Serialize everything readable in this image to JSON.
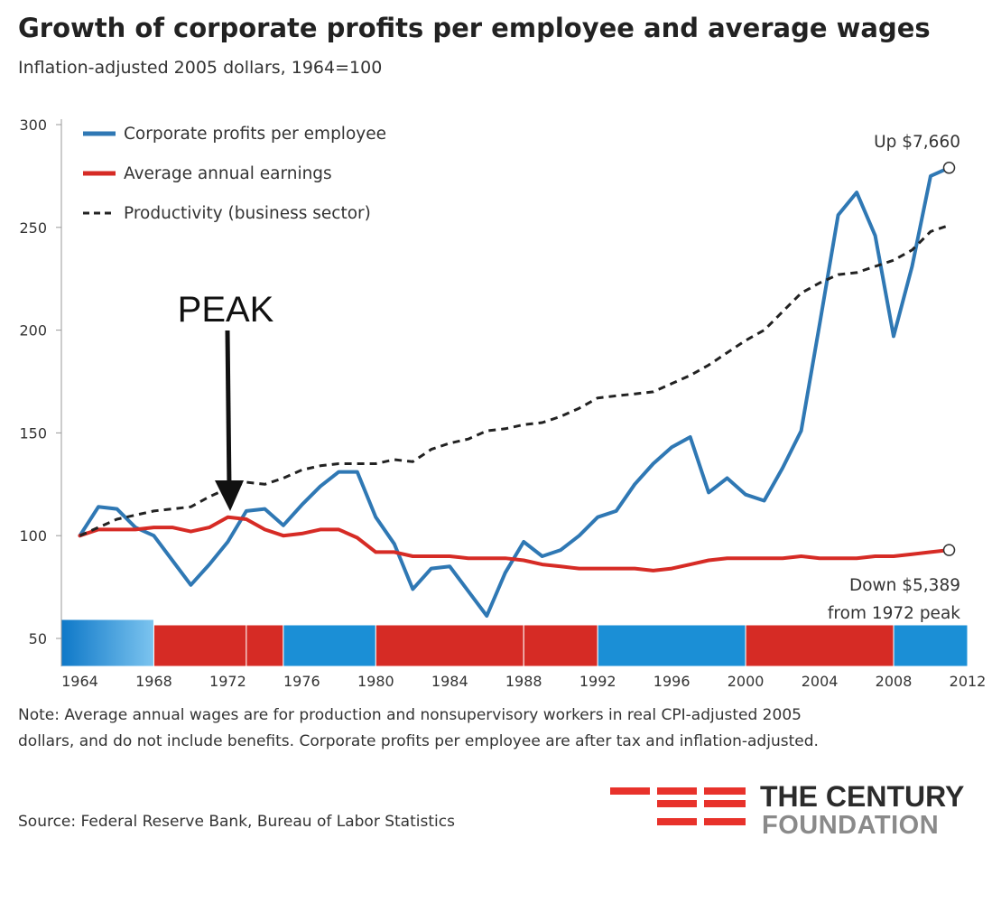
{
  "title": "Growth of corporate profits per employee and average wages",
  "subtitle": "Inflation-adjusted 2005 dollars, 1964=100",
  "note_line1": "Note: Average annual wages are for production and nonsupervisory workers in real CPI-adjusted 2005",
  "note_line2": "dollars, and do not include benefits. Corporate profits per employee are after tax and inflation-adjusted.",
  "source": "Source: Federal Reserve Bank, Bureau of Labor Statistics",
  "logo": {
    "line1": "THE CENTURY",
    "line2": "FOUNDATION",
    "color": "#e8322b"
  },
  "chart_data": {
    "type": "line",
    "xlim": [
      1963,
      2012
    ],
    "ylim": [
      50,
      300
    ],
    "y_ticks": [
      "50",
      "100",
      "150",
      "200",
      "250",
      "300"
    ],
    "x_ticks": [
      "1964",
      "1968",
      "1972",
      "1976",
      "1980",
      "1984",
      "1988",
      "1992",
      "1996",
      "2000",
      "2004",
      "2008",
      "2012"
    ],
    "legend_position": "top-left",
    "series": [
      {
        "name": "Corporate profits per employee",
        "color": "#2f78b4",
        "style": "solid",
        "x": [
          1964,
          1965,
          1966,
          1967,
          1968,
          1969,
          1970,
          1971,
          1972,
          1973,
          1974,
          1975,
          1976,
          1977,
          1978,
          1979,
          1980,
          1981,
          1982,
          1983,
          1984,
          1985,
          1986,
          1987,
          1988,
          1989,
          1990,
          1991,
          1992,
          1993,
          1994,
          1995,
          1996,
          1997,
          1998,
          1999,
          2000,
          2001,
          2002,
          2003,
          2004,
          2005,
          2006,
          2007,
          2008,
          2009,
          2010,
          2011
        ],
        "values": [
          100,
          114,
          113,
          104,
          100,
          88,
          76,
          86,
          97,
          112,
          113,
          105,
          115,
          124,
          131,
          131,
          109,
          96,
          74,
          84,
          85,
          73,
          61,
          82,
          97,
          90,
          93,
          100,
          109,
          112,
          125,
          135,
          143,
          148,
          121,
          128,
          120,
          117,
          133,
          151,
          203,
          256,
          267,
          246,
          197,
          231,
          275,
          279
        ]
      },
      {
        "name": "Average annual earnings",
        "color": "#d62b25",
        "style": "solid",
        "x": [
          1964,
          1965,
          1966,
          1967,
          1968,
          1969,
          1970,
          1971,
          1972,
          1973,
          1974,
          1975,
          1976,
          1977,
          1978,
          1979,
          1980,
          1981,
          1982,
          1983,
          1984,
          1985,
          1986,
          1987,
          1988,
          1989,
          1990,
          1991,
          1992,
          1993,
          1994,
          1995,
          1996,
          1997,
          1998,
          1999,
          2000,
          2001,
          2002,
          2003,
          2004,
          2005,
          2006,
          2007,
          2008,
          2009,
          2010,
          2011
        ],
        "values": [
          100,
          103,
          103,
          103,
          104,
          104,
          102,
          104,
          109,
          108,
          103,
          100,
          101,
          103,
          103,
          99,
          92,
          92,
          90,
          90,
          90,
          89,
          89,
          89,
          88,
          86,
          85,
          84,
          84,
          84,
          84,
          83,
          84,
          86,
          88,
          89,
          89,
          89,
          89,
          90,
          89,
          89,
          89,
          90,
          90,
          91,
          92,
          93
        ]
      },
      {
        "name": "Productivity (business sector)",
        "color": "#222222",
        "style": "dashed",
        "x": [
          1964,
          1965,
          1966,
          1967,
          1968,
          1969,
          1970,
          1971,
          1972,
          1973,
          1974,
          1975,
          1976,
          1977,
          1978,
          1979,
          1980,
          1981,
          1982,
          1983,
          1984,
          1985,
          1986,
          1987,
          1988,
          1989,
          1990,
          1991,
          1992,
          1993,
          1994,
          1995,
          1996,
          1997,
          1998,
          1999,
          2000,
          2001,
          2002,
          2003,
          2004,
          2005,
          2006,
          2007,
          2008,
          2009,
          2010,
          2011
        ],
        "values": [
          100,
          104,
          108,
          110,
          112,
          113,
          114,
          119,
          123,
          126,
          125,
          128,
          132,
          134,
          135,
          135,
          135,
          137,
          136,
          142,
          145,
          147,
          151,
          152,
          154,
          155,
          158,
          162,
          167,
          168,
          169,
          170,
          174,
          178,
          183,
          189,
          195,
          200,
          209,
          218,
          223,
          227,
          228,
          231,
          234,
          239,
          248,
          251
        ]
      }
    ],
    "annotations": {
      "peak": "PEAK",
      "up": "Up $7,660",
      "down1": "Down $5,389",
      "down2": "from 1972 peak"
    },
    "period_bar": [
      {
        "from": 1963,
        "to": 1968,
        "party": "D"
      },
      {
        "from": 1968,
        "to": 1973,
        "party": "R"
      },
      {
        "from": 1973,
        "to": 1975,
        "party": "R"
      },
      {
        "from": 1975,
        "to": 1980,
        "party": "D"
      },
      {
        "from": 1980,
        "to": 1988,
        "party": "R"
      },
      {
        "from": 1988,
        "to": 1992,
        "party": "R"
      },
      {
        "from": 1992,
        "to": 2000,
        "party": "D"
      },
      {
        "from": 2000,
        "to": 2008,
        "party": "R"
      },
      {
        "from": 2008,
        "to": 2012,
        "party": "D"
      }
    ],
    "period_colors": {
      "D": "#1b8fd6",
      "R": "#d62b25"
    }
  }
}
